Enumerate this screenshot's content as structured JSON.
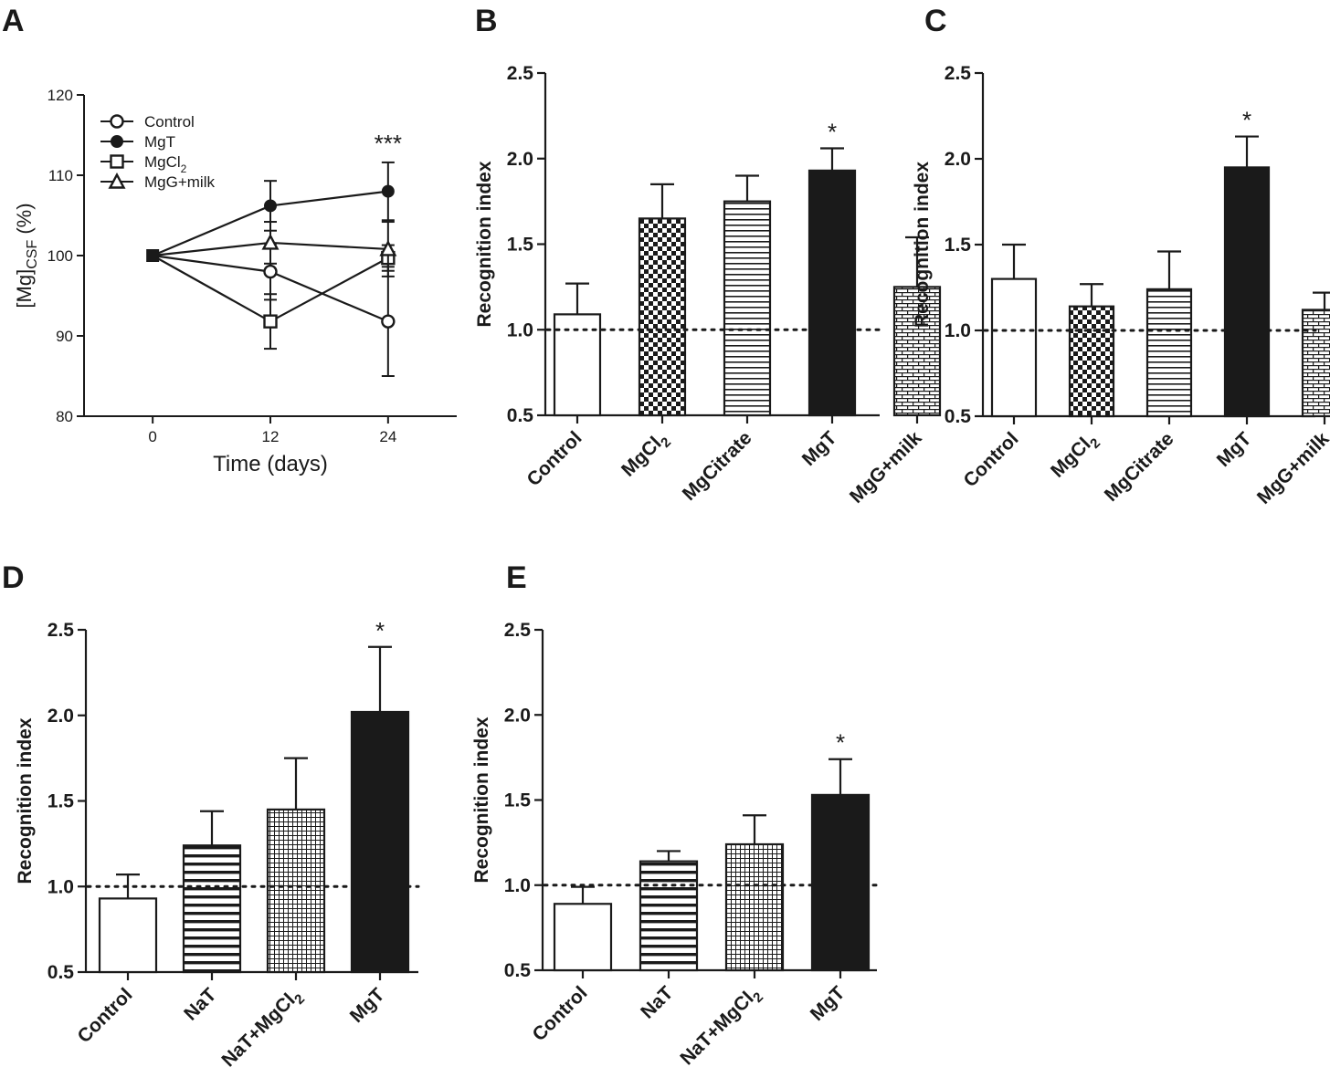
{
  "chart_data": [
    {
      "panel": "A",
      "type": "line",
      "xlabel": "Time  (days)",
      "ylabel": "[Mg]CSF (%)",
      "ylabel_main": "[Mg]",
      "ylabel_sub": "CSF",
      "ylabel_tail": " (%)",
      "x": [
        0,
        12,
        24
      ],
      "xlim": [
        -7,
        31
      ],
      "ylim": [
        80,
        120
      ],
      "yticks": [
        80,
        90,
        100,
        110,
        120
      ],
      "annotation": "***",
      "legend_position": "top-left",
      "series": [
        {
          "name": "Control",
          "marker": "circle-open",
          "values": [
            100,
            98,
            91.8
          ],
          "err": [
            0,
            3.5,
            6.8
          ]
        },
        {
          "name": "MgT",
          "marker": "circle-filled",
          "values": [
            100,
            106.2,
            108
          ],
          "err": [
            0,
            3.1,
            3.6
          ]
        },
        {
          "name": "MgCl",
          "name_sub": "2",
          "marker": "square-open",
          "values": [
            100,
            91.8,
            99.7
          ],
          "err": [
            0,
            3.4,
            1.6
          ]
        },
        {
          "name": "MgG+milk",
          "marker": "triangle-open",
          "values": [
            100,
            101.6,
            100.8
          ],
          "err": [
            0,
            2.6,
            3.4
          ]
        }
      ]
    },
    {
      "panel": "B",
      "type": "bar",
      "ylabel": "Recognition index",
      "ylim": [
        0.5,
        2.5
      ],
      "yticks": [
        "0.5",
        "1.0",
        "1.5",
        "2.0",
        "2.5"
      ],
      "reference_line": 1.0,
      "categories": [
        {
          "label": "Control",
          "sub": ""
        },
        {
          "label": "MgCl",
          "sub": "2"
        },
        {
          "label": "MgCitrate",
          "sub": ""
        },
        {
          "label": "MgT",
          "sub": ""
        },
        {
          "label": "MgG+milk",
          "sub": ""
        }
      ],
      "patterns": [
        "white",
        "checker",
        "hlines",
        "black",
        "brick"
      ],
      "values": [
        1.09,
        1.65,
        1.75,
        1.93,
        1.25
      ],
      "err": [
        0.18,
        0.2,
        0.15,
        0.13,
        0.29
      ],
      "annotations": [
        {
          "index": 3,
          "text": "*"
        }
      ]
    },
    {
      "panel": "C",
      "type": "bar",
      "ylabel": "Recognition index",
      "ylim": [
        0.5,
        2.5
      ],
      "yticks": [
        "0.5",
        "1.0",
        "1.5",
        "2.0",
        "2.5"
      ],
      "reference_line": 1.0,
      "categories": [
        {
          "label": "Control",
          "sub": ""
        },
        {
          "label": "MgCl",
          "sub": "2"
        },
        {
          "label": "MgCitrate",
          "sub": ""
        },
        {
          "label": "MgT",
          "sub": ""
        },
        {
          "label": "MgG+milk",
          "sub": ""
        }
      ],
      "patterns": [
        "white",
        "checker",
        "hlines",
        "black",
        "brick"
      ],
      "values": [
        1.3,
        1.14,
        1.24,
        1.95,
        1.12
      ],
      "err": [
        0.2,
        0.13,
        0.22,
        0.18,
        0.1
      ],
      "annotations": [
        {
          "index": 3,
          "text": "*"
        }
      ]
    },
    {
      "panel": "D",
      "type": "bar",
      "ylabel": "Recognition index",
      "ylim": [
        0.5,
        2.5
      ],
      "yticks": [
        "0.5",
        "1.0",
        "1.5",
        "2.0",
        "2.5"
      ],
      "reference_line": 1.0,
      "categories": [
        {
          "label": "Control",
          "sub": ""
        },
        {
          "label": "NaT",
          "sub": ""
        },
        {
          "label": "NaT+MgCl",
          "sub": "2"
        },
        {
          "label": "MgT",
          "sub": ""
        }
      ],
      "patterns": [
        "white",
        "hlines-thick",
        "grid",
        "black"
      ],
      "values": [
        0.93,
        1.24,
        1.45,
        2.02
      ],
      "err": [
        0.14,
        0.2,
        0.3,
        0.38
      ],
      "annotations": [
        {
          "index": 3,
          "text": "*"
        }
      ]
    },
    {
      "panel": "E",
      "type": "bar",
      "ylabel": "Recognition index",
      "ylim": [
        0.5,
        2.5
      ],
      "yticks": [
        "0.5",
        "1.0",
        "1.5",
        "2.0",
        "2.5"
      ],
      "reference_line": 1.0,
      "categories": [
        {
          "label": "Control",
          "sub": ""
        },
        {
          "label": "NaT",
          "sub": ""
        },
        {
          "label": "NaT+MgCl",
          "sub": "2"
        },
        {
          "label": "MgT",
          "sub": ""
        }
      ],
      "patterns": [
        "white",
        "hlines-thick",
        "grid",
        "black"
      ],
      "values": [
        0.89,
        1.14,
        1.24,
        1.53
      ],
      "err": [
        0.1,
        0.06,
        0.17,
        0.21
      ],
      "annotations": [
        {
          "index": 3,
          "text": "*"
        }
      ]
    }
  ]
}
